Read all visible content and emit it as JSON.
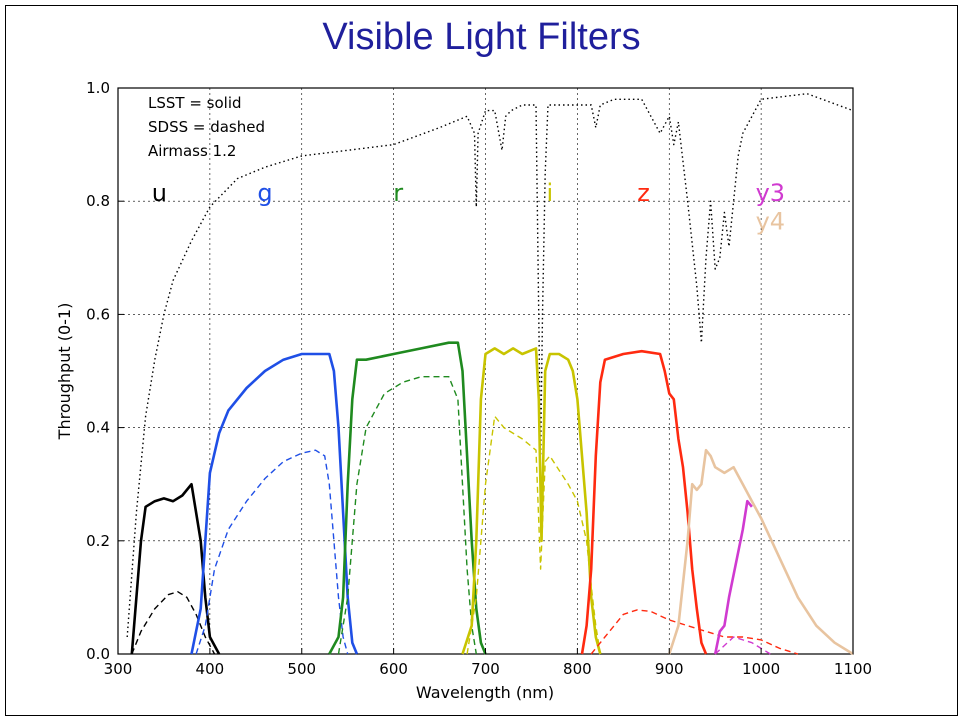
{
  "slide": {
    "title": "Visible Light Filters"
  },
  "chart_data": {
    "type": "line",
    "xlabel": "Wavelength (nm)",
    "ylabel": "Throughput (0-1)",
    "xlim": [
      300,
      1100
    ],
    "ylim": [
      0,
      1.0
    ],
    "xticks": [
      300,
      400,
      500,
      600,
      700,
      800,
      900,
      1000,
      1100
    ],
    "xtick_labels": [
      "300",
      "400",
      "500",
      "600",
      "700",
      "800",
      "900",
      "1000",
      "1100"
    ],
    "yticks": [
      0.0,
      0.2,
      0.4,
      0.6,
      0.8,
      1.0
    ],
    "ytick_labels": [
      "0.0",
      "0.2",
      "0.4",
      "0.6",
      "0.8",
      "1.0"
    ],
    "grid": true,
    "annotations": [
      "LSST = solid",
      "SDSS = dashed",
      "Airmass 1.2"
    ],
    "band_labels": [
      {
        "text": "u",
        "x": 345,
        "y": 0.8,
        "color": "#000000"
      },
      {
        "text": "g",
        "x": 460,
        "y": 0.8,
        "color": "#1f4fe6"
      },
      {
        "text": "r",
        "x": 605,
        "y": 0.8,
        "color": "#1f8a1f"
      },
      {
        "text": "i",
        "x": 770,
        "y": 0.8,
        "color": "#c8c400"
      },
      {
        "text": "z",
        "x": 872,
        "y": 0.8,
        "color": "#ff2a10"
      },
      {
        "text": "y3",
        "x": 1010,
        "y": 0.8,
        "color": "#d03ad0"
      },
      {
        "text": "y4",
        "x": 1010,
        "y": 0.75,
        "color": "#e8c4a0"
      }
    ],
    "series": [
      {
        "style": "dotted",
        "color": "#000000",
        "x": [
          310,
          320,
          330,
          340,
          350,
          360,
          380,
          400,
          430,
          460,
          500,
          550,
          600,
          650,
          680,
          688,
          690,
          692,
          700,
          710,
          718,
          722,
          728,
          740,
          755,
          760,
          762,
          765,
          768,
          780,
          800,
          815,
          820,
          825,
          840,
          860,
          870,
          880,
          890,
          900,
          905,
          910,
          920,
          930,
          935,
          940,
          945,
          950,
          955,
          960,
          965,
          970,
          975,
          980,
          1000,
          1050,
          1100
        ],
        "y": [
          0.03,
          0.25,
          0.42,
          0.52,
          0.6,
          0.66,
          0.73,
          0.79,
          0.84,
          0.86,
          0.88,
          0.89,
          0.9,
          0.93,
          0.95,
          0.92,
          0.79,
          0.92,
          0.96,
          0.96,
          0.89,
          0.95,
          0.96,
          0.97,
          0.97,
          0.35,
          0.6,
          0.85,
          0.97,
          0.97,
          0.97,
          0.97,
          0.93,
          0.97,
          0.98,
          0.98,
          0.98,
          0.95,
          0.92,
          0.95,
          0.9,
          0.94,
          0.8,
          0.65,
          0.55,
          0.7,
          0.8,
          0.68,
          0.7,
          0.78,
          0.72,
          0.8,
          0.88,
          0.92,
          0.98,
          0.99,
          0.96
        ]
      },
      {
        "style": "solid",
        "color": "#000000",
        "x": [
          315,
          320,
          325,
          330,
          340,
          350,
          360,
          370,
          380,
          385,
          390,
          395,
          400,
          410
        ],
        "y": [
          0.0,
          0.1,
          0.2,
          0.26,
          0.27,
          0.275,
          0.27,
          0.28,
          0.3,
          0.25,
          0.2,
          0.1,
          0.03,
          0.0
        ]
      },
      {
        "style": "dashed",
        "color": "#000000",
        "x": [
          315,
          325,
          340,
          355,
          365,
          375,
          385,
          395,
          405
        ],
        "y": [
          0.0,
          0.04,
          0.08,
          0.105,
          0.11,
          0.1,
          0.07,
          0.03,
          0.0
        ]
      },
      {
        "style": "solid",
        "color": "#1f4fe6",
        "x": [
          380,
          390,
          400,
          410,
          420,
          440,
          460,
          480,
          500,
          510,
          520,
          530,
          535,
          540,
          545,
          550,
          555,
          560
        ],
        "y": [
          0.0,
          0.08,
          0.32,
          0.39,
          0.43,
          0.47,
          0.5,
          0.52,
          0.53,
          0.53,
          0.53,
          0.53,
          0.5,
          0.4,
          0.25,
          0.1,
          0.02,
          0.0
        ]
      },
      {
        "style": "dashed",
        "color": "#1f4fe6",
        "x": [
          385,
          395,
          405,
          420,
          440,
          460,
          480,
          500,
          515,
          525,
          530,
          535,
          540,
          545,
          550
        ],
        "y": [
          0.0,
          0.05,
          0.15,
          0.22,
          0.27,
          0.31,
          0.34,
          0.355,
          0.36,
          0.35,
          0.3,
          0.2,
          0.1,
          0.03,
          0.0
        ]
      },
      {
        "style": "solid",
        "color": "#1f8a1f",
        "x": [
          530,
          540,
          545,
          550,
          555,
          560,
          570,
          600,
          630,
          660,
          670,
          675,
          680,
          685,
          690,
          695,
          700
        ],
        "y": [
          0.0,
          0.03,
          0.1,
          0.3,
          0.45,
          0.52,
          0.52,
          0.53,
          0.54,
          0.55,
          0.55,
          0.5,
          0.35,
          0.2,
          0.08,
          0.02,
          0.0
        ]
      },
      {
        "style": "dashed",
        "color": "#1f8a1f",
        "x": [
          540,
          550,
          560,
          570,
          590,
          610,
          630,
          660,
          670,
          675,
          680,
          685,
          690
        ],
        "y": [
          0.0,
          0.1,
          0.3,
          0.4,
          0.46,
          0.48,
          0.49,
          0.49,
          0.45,
          0.3,
          0.15,
          0.05,
          0.0
        ]
      },
      {
        "style": "solid",
        "color": "#c8c400",
        "x": [
          675,
          685,
          690,
          695,
          700,
          710,
          720,
          730,
          740,
          755,
          758,
          761,
          765,
          770,
          780,
          790,
          795,
          800,
          805,
          810,
          815,
          820,
          825
        ],
        "y": [
          0.0,
          0.05,
          0.2,
          0.45,
          0.53,
          0.54,
          0.53,
          0.54,
          0.53,
          0.54,
          0.45,
          0.2,
          0.5,
          0.53,
          0.53,
          0.52,
          0.5,
          0.45,
          0.35,
          0.25,
          0.1,
          0.03,
          0.0
        ]
      },
      {
        "style": "dashed",
        "color": "#c8c400",
        "x": [
          680,
          690,
          700,
          710,
          720,
          740,
          755,
          760,
          765,
          770,
          790,
          800,
          810,
          815,
          820,
          825
        ],
        "y": [
          0.0,
          0.1,
          0.3,
          0.42,
          0.4,
          0.38,
          0.36,
          0.15,
          0.34,
          0.35,
          0.3,
          0.27,
          0.2,
          0.12,
          0.05,
          0.0
        ]
      },
      {
        "style": "solid",
        "color": "#ff2a10",
        "x": [
          805,
          810,
          815,
          820,
          825,
          830,
          850,
          870,
          890,
          895,
          900,
          905,
          910,
          915,
          920,
          925,
          930,
          935,
          940
        ],
        "y": [
          0.0,
          0.05,
          0.15,
          0.35,
          0.48,
          0.52,
          0.53,
          0.535,
          0.53,
          0.5,
          0.46,
          0.45,
          0.38,
          0.33,
          0.25,
          0.15,
          0.08,
          0.02,
          0.0
        ]
      },
      {
        "style": "dashed",
        "color": "#ff2a10",
        "x": [
          815,
          830,
          850,
          865,
          880,
          900,
          920,
          940,
          960,
          980,
          1000,
          1020,
          1040
        ],
        "y": [
          0.0,
          0.03,
          0.07,
          0.078,
          0.075,
          0.06,
          0.05,
          0.04,
          0.03,
          0.03,
          0.025,
          0.01,
          0.0
        ]
      },
      {
        "style": "solid",
        "color": "#e8c4a0",
        "x": [
          900,
          910,
          920,
          925,
          930,
          935,
          940,
          945,
          950,
          960,
          970,
          980,
          990,
          1000,
          1020,
          1040,
          1060,
          1080,
          1100
        ],
        "y": [
          0.0,
          0.05,
          0.2,
          0.3,
          0.29,
          0.3,
          0.36,
          0.35,
          0.33,
          0.32,
          0.33,
          0.3,
          0.27,
          0.24,
          0.17,
          0.1,
          0.05,
          0.02,
          0.0
        ]
      },
      {
        "style": "solid",
        "color": "#d03ad0",
        "x": [
          950,
          955,
          960,
          965,
          970,
          975,
          980,
          985,
          990
        ],
        "y": [
          0.0,
          0.04,
          0.05,
          0.1,
          0.14,
          0.18,
          0.22,
          0.27,
          0.26
        ]
      },
      {
        "style": "dashed",
        "color": "#d03ad0",
        "x": [
          950,
          970,
          990,
          1010
        ],
        "y": [
          0.0,
          0.03,
          0.02,
          0.0
        ]
      }
    ]
  }
}
